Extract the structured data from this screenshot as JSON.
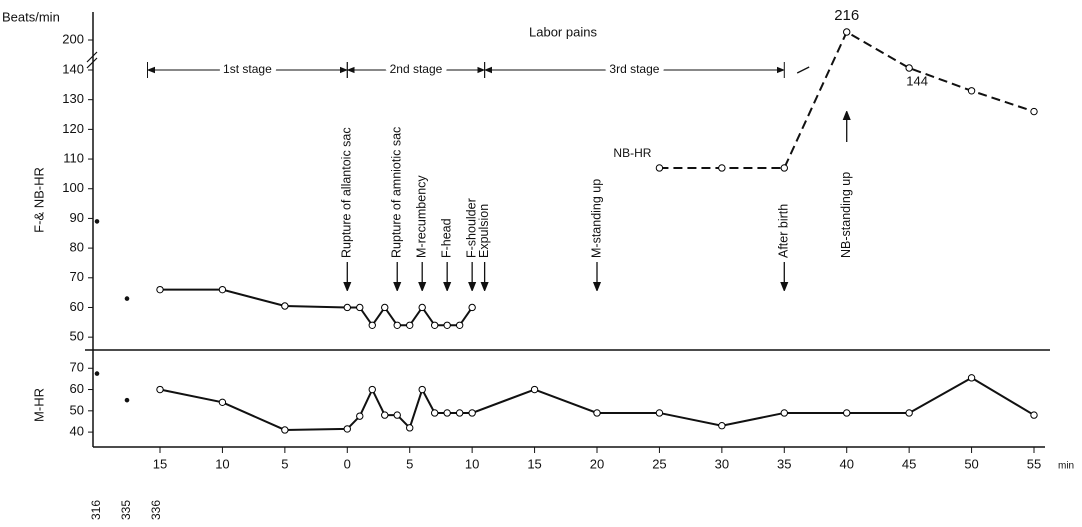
{
  "chart_data": [
    {
      "type": "line",
      "title": "Labor pains",
      "y_unit": "Beats/min",
      "ylabel": "F-& NB-HR",
      "ylim": [
        45,
        220
      ],
      "ybreak": 140,
      "yticks": [
        50,
        60,
        70,
        80,
        90,
        100,
        110,
        120,
        130,
        140,
        200
      ],
      "series": [
        {
          "x": [
            -15,
            -10,
            -5,
            0,
            1,
            2,
            3,
            4,
            5,
            6,
            7,
            8,
            9,
            10
          ],
          "values": [
            66,
            66,
            60.5,
            60,
            60,
            54,
            60,
            54,
            54,
            60,
            54,
            54,
            54,
            60
          ],
          "color": "#000000",
          "dash": false
        },
        {
          "name": "NB-HR",
          "x": [
            25,
            30,
            35,
            40,
            45,
            50,
            55
          ],
          "values": [
            107,
            107,
            107,
            216,
            144,
            133,
            126
          ],
          "value_labels": [
            null,
            null,
            null,
            "216",
            "144",
            null,
            null
          ],
          "color": "#000000",
          "dash": true
        }
      ],
      "early_values": [
        89,
        63
      ],
      "stages": [
        {
          "label": "1st stage",
          "start": -16,
          "end": 0
        },
        {
          "label": "2nd stage",
          "start": 0,
          "end": 11
        },
        {
          "label": "3rd stage",
          "start": 11,
          "end": 35
        }
      ],
      "events": [
        {
          "label": "Rupture of allantoic sac",
          "x": 0,
          "direction": "down"
        },
        {
          "label": "Rupture of amniotic sac",
          "x": 4,
          "direction": "down"
        },
        {
          "label": "M-recumbency",
          "x": 6,
          "direction": "down"
        },
        {
          "label": "F-head",
          "x": 8,
          "direction": "down"
        },
        {
          "label": "F-shoulder",
          "x": 10,
          "direction": "down"
        },
        {
          "label": "Expulsion",
          "x": 11,
          "direction": "down"
        },
        {
          "label": "M-standing up",
          "x": 20,
          "direction": "down"
        },
        {
          "label": "After birth",
          "x": 35,
          "direction": "down"
        },
        {
          "label": "NB-standing up",
          "x": 40,
          "direction": "up"
        }
      ]
    },
    {
      "type": "line",
      "ylabel": "M-HR",
      "ylim": [
        33,
        72
      ],
      "yticks": [
        40,
        50,
        60,
        70
      ],
      "xlim": [
        -15,
        55
      ],
      "xticks": [
        {
          "value": -15,
          "label": "15"
        },
        {
          "value": -10,
          "label": "10"
        },
        {
          "value": -5,
          "label": "5"
        },
        0,
        5,
        10,
        15,
        20,
        25,
        30,
        35,
        40,
        45,
        50,
        55
      ],
      "x_unit": "min",
      "early_labels": [
        "316",
        "335",
        "336"
      ],
      "series": [
        {
          "x": [
            -15,
            -10,
            -5,
            0,
            1,
            2,
            3,
            4,
            5,
            6,
            7,
            8,
            9,
            10,
            15,
            20,
            25,
            30,
            35,
            40,
            45,
            50,
            55
          ],
          "values": [
            60,
            54,
            41,
            41.5,
            47.5,
            60,
            48,
            48,
            42,
            60,
            49,
            49,
            49,
            49,
            60,
            49,
            49,
            43,
            49,
            49,
            49,
            65.5,
            48
          ],
          "color": "#000000",
          "dash": false
        }
      ],
      "early_values": [
        67.5,
        55
      ]
    }
  ]
}
